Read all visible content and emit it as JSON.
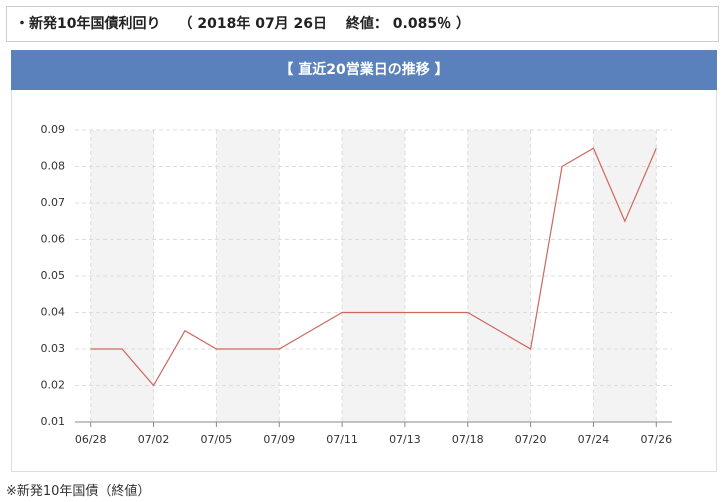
{
  "header": {
    "title": "・新発10年国債利回り",
    "quote": "（ 2018年 07月 26日　 終値： 0.085％ ）"
  },
  "footnote": "※新発10年国債（終値）",
  "chart_data": {
    "type": "line",
    "title": "【 直近20営業日の推移 】",
    "categories": [
      "06/28",
      null,
      "07/02",
      null,
      "07/05",
      null,
      "07/09",
      null,
      "07/11",
      null,
      "07/13",
      null,
      "07/18",
      null,
      "07/20",
      null,
      "07/24",
      null,
      "07/26"
    ],
    "series": [
      {
        "name": "新発10年国債",
        "color": "#d0675f",
        "values": [
          0.03,
          0.03,
          0.02,
          0.035,
          0.03,
          0.03,
          0.03,
          0.035,
          0.04,
          0.04,
          0.04,
          0.04,
          0.04,
          0.035,
          0.03,
          0.08,
          0.085,
          0.065,
          0.085
        ]
      }
    ],
    "ylim": [
      0.01,
      0.09
    ],
    "yticks": [
      0.01,
      0.02,
      0.03,
      0.04,
      0.05,
      0.06,
      0.07,
      0.08,
      0.09
    ],
    "grid": true
  }
}
